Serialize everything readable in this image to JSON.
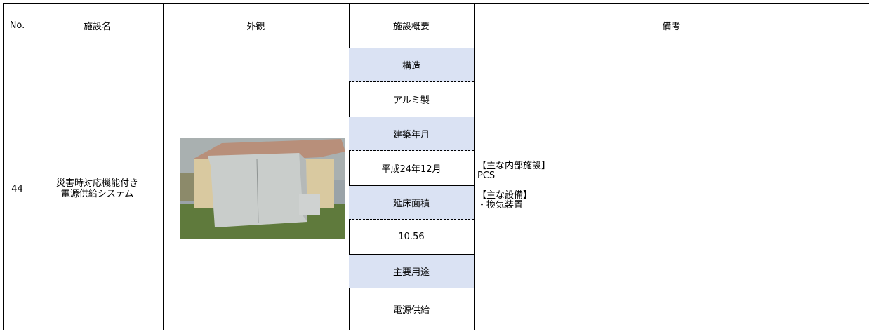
{
  "table": {
    "header": [
      "No.",
      "施設名",
      "外観",
      "施設概要",
      "備考"
    ],
    "rows": [
      {
        "no": "44",
        "name": [
          "災害時対応機能付き",
          "電源供給システム"
        ],
        "overview": [
          [
            "構造",
            "アルミ製"
          ],
          [
            "建築年月",
            "平成24年12月"
          ],
          [
            "延床面積",
            "10.56"
          ],
          [
            "主要用途",
            "電源供給"
          ]
        ],
        "remarks": [
          {
            "heading": "【主な内部施設】",
            "items": [
              "PCS"
            ]
          },
          {
            "heading": "【主な設備】",
            "items": [
              "・換気装置"
            ]
          }
        ]
      }
    ]
  }
}
